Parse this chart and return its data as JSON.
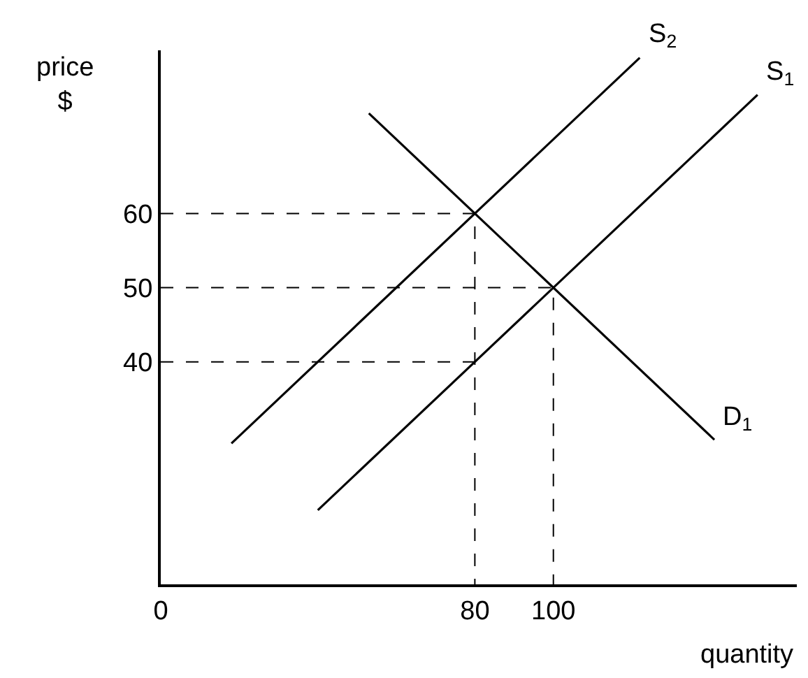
{
  "chart_data": {
    "type": "line",
    "xlabel": "quantity",
    "ylabel": "price\n$",
    "xlim": [
      0,
      162
    ],
    "ylim": [
      10,
      82
    ],
    "xticks": [
      0,
      80,
      100
    ],
    "yticks": [
      40,
      50,
      60
    ],
    "line_style": "solid",
    "series": [
      {
        "color": "#000000",
        "x": [
          18,
          122
        ],
        "values": [
          29,
          81
        ]
      },
      {
        "color": "#000000",
        "x": [
          40,
          152
        ],
        "values": [
          20,
          76
        ]
      },
      {
        "color": "#000000",
        "x": [
          53,
          141
        ],
        "values": [
          73.5,
          29.5
        ]
      },
      {
        "color": "#000000",
        "line_style": "dashed",
        "x": [
          0,
          80,
          80
        ],
        "values": [
          60,
          60,
          10
        ]
      },
      {
        "color": "#000000",
        "line_style": "dashed",
        "x": [
          0,
          100,
          100
        ],
        "values": [
          50,
          50,
          10
        ]
      },
      {
        "color": "#000000",
        "line_style": "dashed",
        "x": [
          0,
          80
        ],
        "values": [
          40,
          40
        ]
      }
    ],
    "annotations": [
      {
        "text": "S$_{2}$",
        "x": 122,
        "y": 81
      },
      {
        "text": "S$_{1}$",
        "x": 152,
        "y": 76
      },
      {
        "text": "D$_{1}$",
        "x": 141,
        "y": 29.5
      }
    ]
  }
}
